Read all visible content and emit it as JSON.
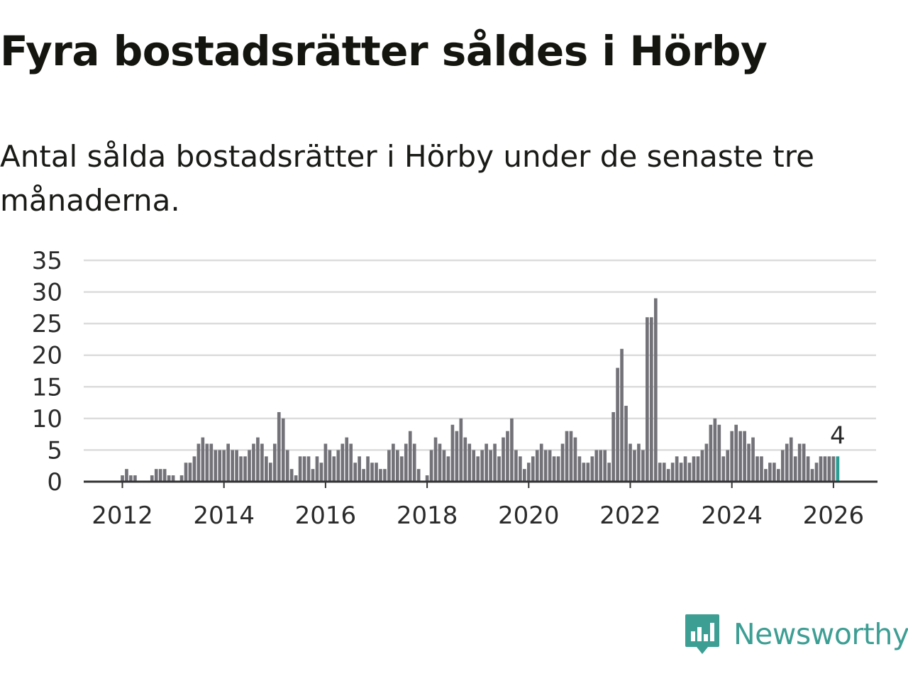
{
  "title": "Fyra bostadsrätter såldes i Hörby",
  "subtitle": "Antal sålda bostadsrätter i Hörby under de senaste tre månaderna.",
  "brand": {
    "name": "Newsworthy",
    "icon": "newsworthy-logo-icon",
    "color": "#3d9e94"
  },
  "colors": {
    "bar": "#737278",
    "highlight": "#2a9d94",
    "grid": "#dcdcdc",
    "axis": "#333333"
  },
  "chart_data": {
    "type": "bar",
    "x_start": "2012-01",
    "x_step": "month",
    "xticks": [
      "2012",
      "2014",
      "2016",
      "2018",
      "2020",
      "2022",
      "2024",
      "2026"
    ],
    "yticks": [
      "0",
      "5",
      "10",
      "15",
      "20",
      "25",
      "30",
      "35"
    ],
    "ylim": [
      0,
      35
    ],
    "grid": true,
    "values": [
      1,
      2,
      1,
      1,
      0,
      0,
      0,
      1,
      2,
      2,
      2,
      1,
      1,
      0,
      1,
      3,
      3,
      4,
      6,
      7,
      6,
      6,
      5,
      5,
      5,
      6,
      5,
      5,
      4,
      4,
      5,
      6,
      7,
      6,
      4,
      3,
      6,
      11,
      10,
      5,
      2,
      1,
      4,
      4,
      4,
      2,
      4,
      3,
      6,
      5,
      4,
      5,
      6,
      7,
      6,
      3,
      4,
      2,
      4,
      3,
      3,
      2,
      2,
      5,
      6,
      5,
      4,
      6,
      8,
      6,
      2,
      0,
      1,
      5,
      7,
      6,
      5,
      4,
      9,
      8,
      10,
      7,
      6,
      5,
      4,
      5,
      6,
      5,
      6,
      4,
      7,
      8,
      10,
      5,
      4,
      2,
      3,
      4,
      5,
      6,
      5,
      5,
      4,
      4,
      6,
      8,
      8,
      7,
      4,
      3,
      3,
      4,
      5,
      5,
      5,
      3,
      11,
      18,
      21,
      12,
      6,
      5,
      6,
      5,
      26,
      26,
      29,
      3,
      3,
      2,
      3,
      4,
      3,
      4,
      3,
      4,
      4,
      5,
      6,
      9,
      10,
      9,
      4,
      5,
      8,
      9,
      8,
      8,
      6,
      7,
      4,
      4,
      2,
      3,
      3,
      2,
      5,
      6,
      7,
      4,
      6,
      6,
      4,
      2,
      3,
      4,
      4,
      4,
      4,
      4
    ],
    "highlight_last": 1,
    "annotation": {
      "label": "4",
      "target": "last"
    }
  }
}
